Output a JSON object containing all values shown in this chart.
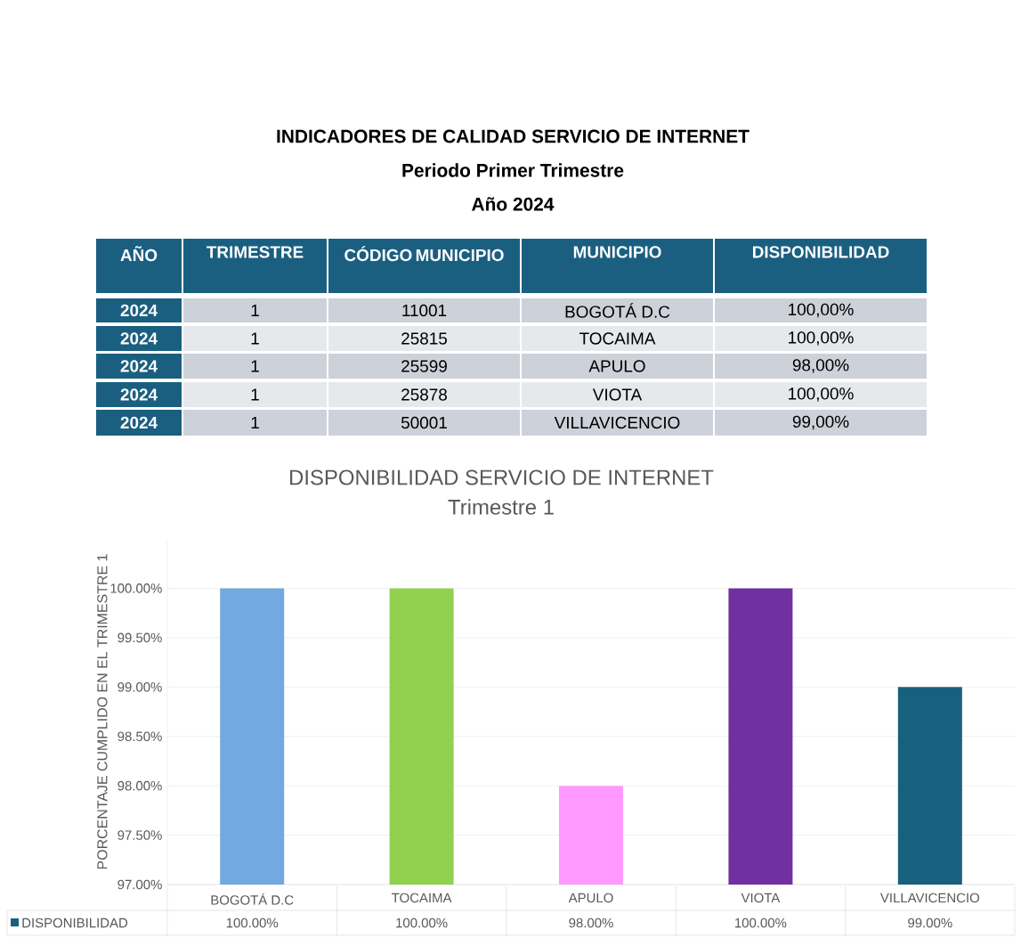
{
  "chart_data": [
    {
      "type": "other",
      "title": "INDICADORES DE CALIDAD SERVICIO DE INTERNET",
      "subtitle": "Periodo Primer Trimestre",
      "annotations": [
        "Año 2024",
        "AÑO",
        "TRIMESTRE",
        "CÓDIGO MUNICIPIO",
        "MUNICIPIO",
        "DISPONIBILIDAD",
        "2024",
        "1",
        "11001",
        "BOGOTÁ D.C",
        "100,00%",
        "2024",
        "1",
        "25815",
        "TOCAIMA",
        "100,00%",
        "2024",
        "1",
        "25599",
        "APULO",
        "98,00%",
        "2024",
        "1",
        "25878",
        "VIOTA",
        "100,00%",
        "2024",
        "1",
        "50001",
        "VILLAVICENCIO",
        "99,00%"
      ]
    },
    {
      "type": "bar",
      "title": "DISPONIBILIDAD SERVICIO DE INTERNET",
      "subtitle": "Trimestre 1",
      "ylabel": "PORCENTAJE CUMPLIDO EN EL TRIMESTRE 1",
      "categories": [
        "BOGOTÁ D.C",
        "TOCAIMA",
        "APULO",
        "VIOTA",
        "VILLAVICENCIO"
      ],
      "series": [
        {
          "name": "DISPONIBILIDAD",
          "color": "#17607e",
          "values": [
            100,
            100,
            98,
            100,
            99
          ],
          "colors": [
            "#72a9e0",
            "#92d050",
            "#ff99ff",
            "#7030a0",
            "#17607e"
          ],
          "value_labels": [
            "100.00%",
            "100.00%",
            "98.00%",
            "100.00%",
            "99.00%"
          ]
        }
      ],
      "ylim": [
        97,
        100.5
      ],
      "yticks": [
        {
          "value": 97,
          "label": "97.00%"
        },
        {
          "value": 97.5,
          "label": "97.50%"
        },
        {
          "value": 98,
          "label": "98.00%"
        },
        {
          "value": 98.5,
          "label": "98.50%"
        },
        {
          "value": 99,
          "label": "99.00%"
        },
        {
          "value": 99.5,
          "label": "99.50%"
        },
        {
          "value": 100,
          "label": "100.00%"
        }
      ],
      "grid": "y",
      "legend": "bottom"
    }
  ]
}
